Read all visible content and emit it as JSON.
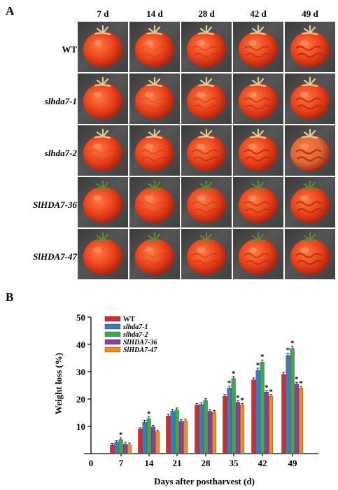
{
  "panel_a": {
    "label": "A",
    "columns": [
      "7 d",
      "14 d",
      "28 d",
      "42 d",
      "49 d"
    ],
    "rows": [
      "WT",
      "slhda7-1",
      "slhda7-2",
      "SlHDA7-36",
      "SlHDA7-47"
    ]
  },
  "panel_b": {
    "label": "B"
  },
  "chart_data": {
    "type": "bar",
    "xlabel": "Days after postharvest (d)",
    "ylabel": "Weight loss (%)",
    "categories": [
      "7",
      "14",
      "21",
      "28",
      "35",
      "42",
      "49"
    ],
    "x_axis_origin_label": "0",
    "ylim": [
      0,
      50
    ],
    "yticks": [
      10,
      20,
      30,
      40,
      50
    ],
    "legend_position": "top-left",
    "series": [
      {
        "name": "WT",
        "color": "#d62b2b",
        "values": [
          3.2,
          9.0,
          13.8,
          17.8,
          21.0,
          27.0,
          29.0
        ],
        "errors": [
          0.5,
          0.5,
          0.6,
          0.5,
          0.6,
          0.7,
          0.8
        ],
        "significant": [
          false,
          false,
          false,
          false,
          false,
          false,
          false
        ]
      },
      {
        "name": "slhda7-1",
        "color": "#3f78c8",
        "values": [
          4.2,
          11.5,
          15.5,
          18.0,
          24.0,
          30.5,
          36.0
        ],
        "errors": [
          0.5,
          0.7,
          0.7,
          0.6,
          0.7,
          0.8,
          0.8
        ],
        "significant": [
          false,
          false,
          false,
          false,
          true,
          true,
          true
        ]
      },
      {
        "name": "slhda7-2",
        "color": "#3ca84a",
        "values": [
          5.2,
          12.8,
          16.0,
          19.5,
          27.5,
          33.5,
          38.5
        ],
        "errors": [
          0.6,
          0.7,
          0.7,
          0.6,
          0.7,
          0.8,
          0.9
        ],
        "significant": [
          true,
          true,
          false,
          false,
          true,
          true,
          true
        ]
      },
      {
        "name": "SlHDA7-36",
        "color": "#8a3fa0",
        "values": [
          3.5,
          9.8,
          11.8,
          15.5,
          18.8,
          22.5,
          25.5
        ],
        "errors": [
          0.6,
          0.6,
          0.6,
          0.6,
          0.6,
          0.6,
          0.6
        ],
        "significant": [
          false,
          false,
          false,
          false,
          true,
          true,
          true
        ]
      },
      {
        "name": "SlHDA7-47",
        "color": "#f08a22",
        "values": [
          3.3,
          8.0,
          12.0,
          15.2,
          17.8,
          21.0,
          24.0
        ],
        "errors": [
          0.6,
          0.6,
          0.6,
          0.6,
          0.6,
          0.6,
          0.6
        ],
        "significant": [
          false,
          false,
          false,
          false,
          true,
          true,
          true
        ]
      }
    ]
  }
}
